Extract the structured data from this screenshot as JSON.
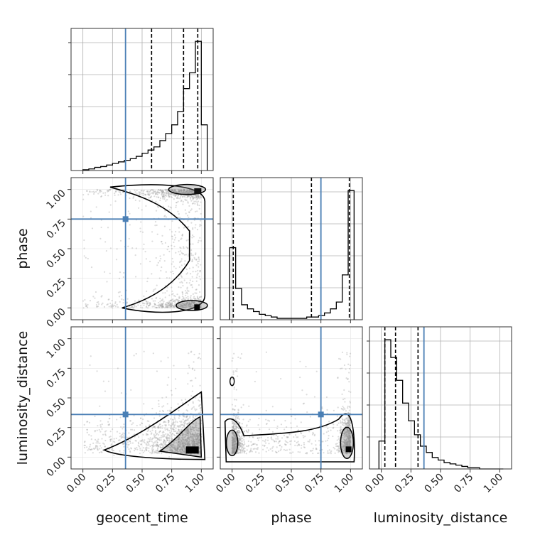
{
  "chart_data": {
    "type": "corner",
    "parameters": [
      "geocent_time",
      "phase",
      "luminosity_distance"
    ],
    "axis_range": [
      -0.1,
      1.1
    ],
    "tick_labels": [
      "0.00",
      "0.25",
      "0.50",
      "0.75",
      "1.00"
    ],
    "tick_values": [
      0,
      0.25,
      0.5,
      0.75,
      1.0
    ],
    "grid": true,
    "truth": {
      "geocent_time": 0.36,
      "phase": 0.75,
      "luminosity_distance": 0.36
    },
    "colors": {
      "truth": "#4a7fb5",
      "histogram": "#000000",
      "grid": "#b0b0b0",
      "scatter": "#9a9a9a"
    },
    "histograms": [
      {
        "parameter": "geocent_time",
        "bin_edges": [
          0,
          0.05,
          0.1,
          0.15,
          0.2,
          0.25,
          0.3,
          0.35,
          0.4,
          0.45,
          0.5,
          0.55,
          0.6,
          0.65,
          0.7,
          0.75,
          0.8,
          0.85,
          0.9,
          0.95,
          1.0,
          1.05
        ],
        "counts": [
          1,
          2,
          4,
          5,
          7,
          9,
          11,
          13,
          15,
          18,
          22,
          26,
          30,
          38,
          47,
          58,
          75,
          104,
          124,
          164,
          58
        ],
        "quantiles": [
          0.58,
          0.85,
          0.97
        ]
      },
      {
        "parameter": "phase",
        "bin_edges": [
          -0.02,
          0.03,
          0.08,
          0.13,
          0.18,
          0.23,
          0.28,
          0.33,
          0.38,
          0.43,
          0.48,
          0.53,
          0.58,
          0.63,
          0.68,
          0.73,
          0.78,
          0.83,
          0.88,
          0.93,
          0.98,
          1.03
        ],
        "counts": [
          53,
          23,
          11,
          8,
          6,
          4,
          3,
          2,
          1,
          1,
          1,
          1,
          1,
          2,
          2,
          3,
          5,
          8,
          13,
          33,
          95
        ],
        "quantiles": [
          0.01,
          0.67,
          0.99
        ]
      },
      {
        "parameter": "luminosity_distance",
        "bin_edges": [
          -0.02,
          0.03,
          0.08,
          0.13,
          0.18,
          0.23,
          0.28,
          0.33,
          0.38,
          0.43,
          0.48,
          0.53,
          0.58,
          0.63,
          0.68,
          0.73,
          0.78,
          0.83,
          0.88,
          0.93,
          0.98,
          1.03
        ],
        "counts": [
          22,
          102,
          88,
          70,
          52,
          38,
          27,
          18,
          13,
          9,
          7,
          5,
          4,
          3,
          2,
          1,
          1,
          0,
          0,
          0,
          0
        ],
        "quantiles": [
          0.03,
          0.12,
          0.31
        ]
      }
    ]
  }
}
